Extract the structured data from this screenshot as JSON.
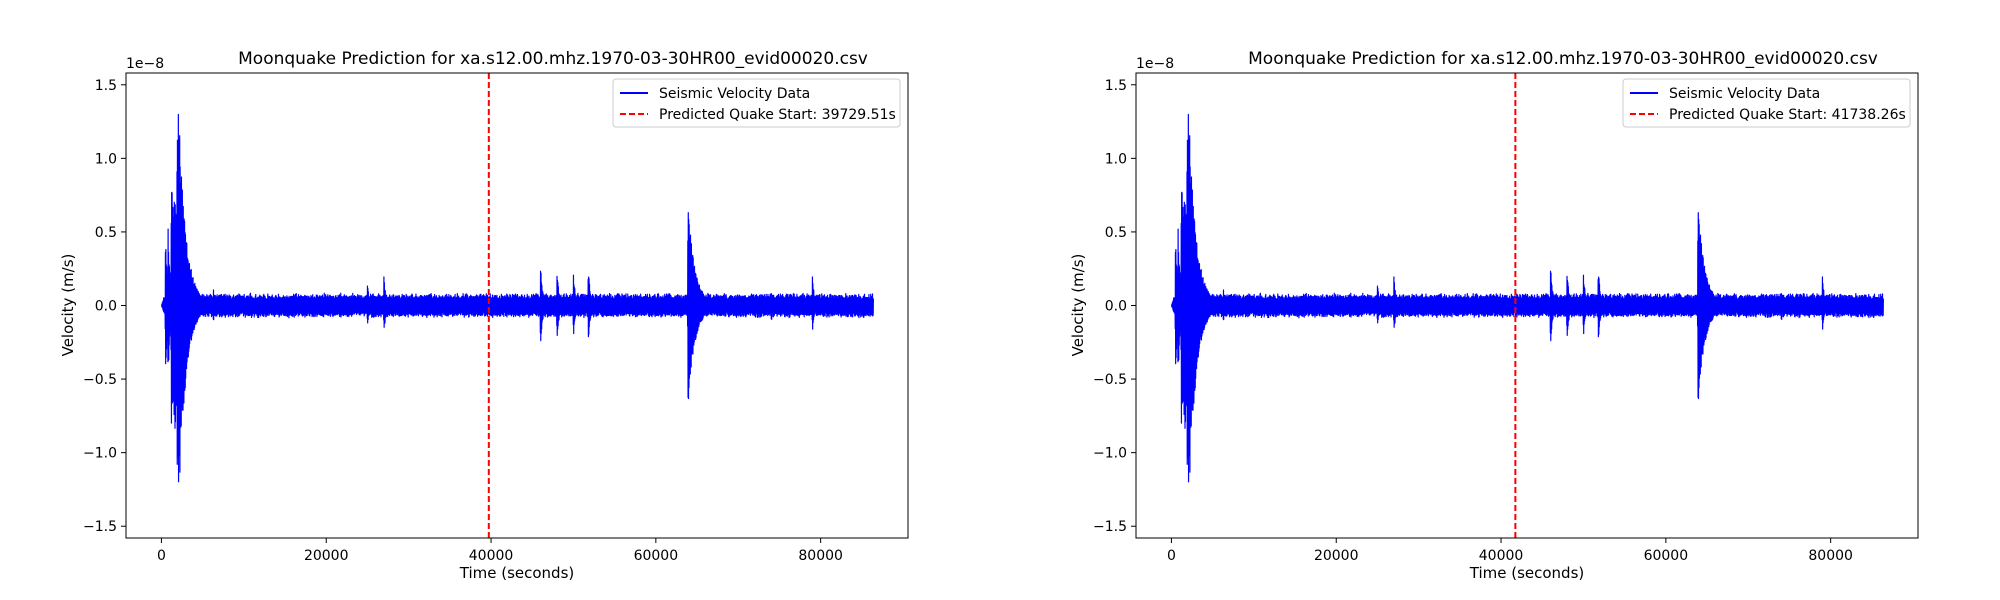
{
  "figure": {
    "background": "#ffffff"
  },
  "chart_data": [
    {
      "type": "line",
      "title": "Moonquake Prediction for xa.s12.00.mhz.1970-03-30HR00_evid00020.csv",
      "xlabel": "Time (seconds)",
      "ylabel": "Velocity (m/s)",
      "y_scale_label": "1e−8",
      "xlim": [
        -4300,
        90600
      ],
      "ylim": [
        -1.58,
        1.58
      ],
      "xticks": [
        0,
        20000,
        40000,
        60000,
        80000
      ],
      "xtick_labels": [
        "0",
        "20000",
        "40000",
        "60000",
        "80000"
      ],
      "yticks": [
        -1.5,
        -1.0,
        -0.5,
        0.0,
        0.5,
        1.0,
        1.5
      ],
      "ytick_labels": [
        "−1.5",
        "−1.0",
        "−0.5",
        "0.0",
        "0.5",
        "1.0",
        "1.5"
      ],
      "grid": false,
      "legend_position": "top-right",
      "series": [
        {
          "name": "Seismic Velocity Data",
          "color": "#0000ff",
          "style": "solid",
          "signal": {
            "start": 0,
            "end": 86400,
            "baseline_amplitude": 0.07,
            "bursts": [
              {
                "time": 500,
                "amplitude": 0.5
              },
              {
                "time": 800,
                "amplitude": 0.55
              },
              {
                "time": 1200,
                "amplitude": 0.9
              },
              {
                "time": 1550,
                "amplitude": 0.95
              },
              {
                "time": 1900,
                "amplitude": 1.3
              },
              {
                "time": 2050,
                "amplitude": 1.43
              },
              {
                "time": 2300,
                "amplitude": 0.7
              },
              {
                "time": 2950,
                "amplitude": 0.52
              },
              {
                "time": 6300,
                "amplitude": 0.12
              },
              {
                "time": 25000,
                "amplitude": 0.15
              },
              {
                "time": 27000,
                "amplitude": 0.2
              },
              {
                "time": 46000,
                "amplitude": 0.3
              },
              {
                "time": 48000,
                "amplitude": 0.25
              },
              {
                "time": 50000,
                "amplitude": 0.22
              },
              {
                "time": 51800,
                "amplitude": 0.27
              },
              {
                "time": 63900,
                "amplitude": 0.68
              },
              {
                "time": 74000,
                "amplitude": 0.12
              },
              {
                "time": 79000,
                "amplitude": 0.2
              }
            ]
          }
        },
        {
          "name": "Predicted Quake Start: 39729.51s",
          "color": "#ff0000",
          "style": "dashed",
          "x": 39729.51
        }
      ]
    },
    {
      "type": "line",
      "title": "Moonquake Prediction for xa.s12.00.mhz.1970-03-30HR00_evid00020.csv",
      "xlabel": "Time (seconds)",
      "ylabel": "Velocity (m/s)",
      "y_scale_label": "1e−8",
      "xlim": [
        -4300,
        90600
      ],
      "ylim": [
        -1.58,
        1.58
      ],
      "xticks": [
        0,
        20000,
        40000,
        60000,
        80000
      ],
      "xtick_labels": [
        "0",
        "20000",
        "40000",
        "60000",
        "80000"
      ],
      "yticks": [
        -1.5,
        -1.0,
        -0.5,
        0.0,
        0.5,
        1.0,
        1.5
      ],
      "ytick_labels": [
        "−1.5",
        "−1.0",
        "−0.5",
        "0.0",
        "0.5",
        "1.0",
        "1.5"
      ],
      "grid": false,
      "legend_position": "top-right",
      "series": [
        {
          "name": "Seismic Velocity Data",
          "color": "#0000ff",
          "style": "solid",
          "signal": {
            "start": 0,
            "end": 86400,
            "baseline_amplitude": 0.07,
            "bursts": [
              {
                "time": 500,
                "amplitude": 0.5
              },
              {
                "time": 800,
                "amplitude": 0.55
              },
              {
                "time": 1200,
                "amplitude": 0.9
              },
              {
                "time": 1550,
                "amplitude": 0.95
              },
              {
                "time": 1900,
                "amplitude": 1.3
              },
              {
                "time": 2050,
                "amplitude": 1.43
              },
              {
                "time": 2300,
                "amplitude": 0.7
              },
              {
                "time": 2950,
                "amplitude": 0.52
              },
              {
                "time": 6300,
                "amplitude": 0.12
              },
              {
                "time": 25000,
                "amplitude": 0.15
              },
              {
                "time": 27000,
                "amplitude": 0.2
              },
              {
                "time": 46000,
                "amplitude": 0.3
              },
              {
                "time": 48000,
                "amplitude": 0.25
              },
              {
                "time": 50000,
                "amplitude": 0.22
              },
              {
                "time": 51800,
                "amplitude": 0.27
              },
              {
                "time": 63900,
                "amplitude": 0.68
              },
              {
                "time": 74000,
                "amplitude": 0.12
              },
              {
                "time": 79000,
                "amplitude": 0.2
              }
            ]
          }
        },
        {
          "name": "Predicted Quake Start: 41738.26s",
          "color": "#ff0000",
          "style": "dashed",
          "x": 41738.26
        }
      ]
    }
  ]
}
